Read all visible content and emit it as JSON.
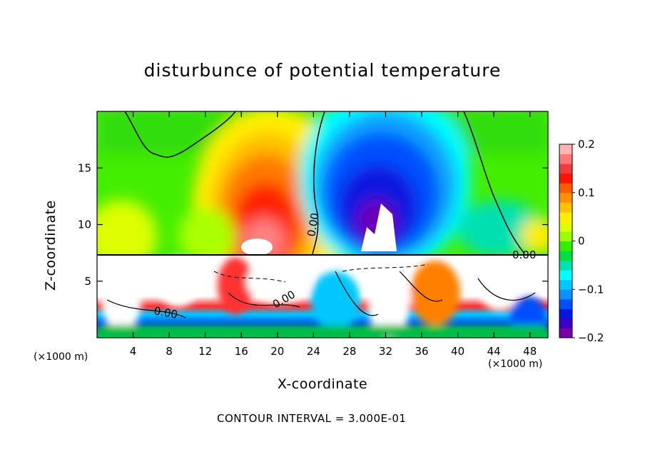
{
  "chart_data": {
    "type": "heatmap",
    "title": "disturbunce of potential temperature",
    "xlabel": "X-coordinate",
    "ylabel": "Z-coordinate",
    "x_unit": "(×1000 m)",
    "y_unit": "(×1000 m)",
    "xlim": [
      0,
      50
    ],
    "ylim": [
      0,
      20
    ],
    "x_ticks": [
      4,
      8,
      12,
      16,
      20,
      24,
      28,
      32,
      36,
      40,
      44,
      48
    ],
    "y_ticks": [
      5,
      10,
      15
    ],
    "colorbar": {
      "range": [
        -0.2,
        0.2
      ],
      "ticks": [
        0.2,
        0.1,
        0,
        -0.1,
        -0.2
      ],
      "tick_labels": [
        "0.2",
        "0.1",
        "0",
        "−0.1",
        "−0.2"
      ],
      "colors": [
        "#7a00a8",
        "#3b00c8",
        "#0018e0",
        "#0050ff",
        "#0a90ff",
        "#00c8ff",
        "#00ffff",
        "#00e0b0",
        "#00dd40",
        "#33ee00",
        "#99ff00",
        "#ddff00",
        "#ffee00",
        "#ffc000",
        "#ff9000",
        "#ff5c00",
        "#ff1400",
        "#f03c3c",
        "#ff7878",
        "#ffb4b4"
      ]
    },
    "contour_label": "0.00",
    "contour_interval_text": "CONTOUR INTERVAL = 3.000E-01",
    "features": [
      {
        "name": "warm anomaly",
        "x_center": 20,
        "z_range": [
          7.5,
          15
        ],
        "peak": 0.2
      },
      {
        "name": "cold anomaly",
        "x_center": 31,
        "z_range": [
          8,
          16
        ],
        "peak": -0.2
      },
      {
        "name": "turbulent boundary layer",
        "z_range": [
          0,
          7.3
        ]
      }
    ]
  }
}
